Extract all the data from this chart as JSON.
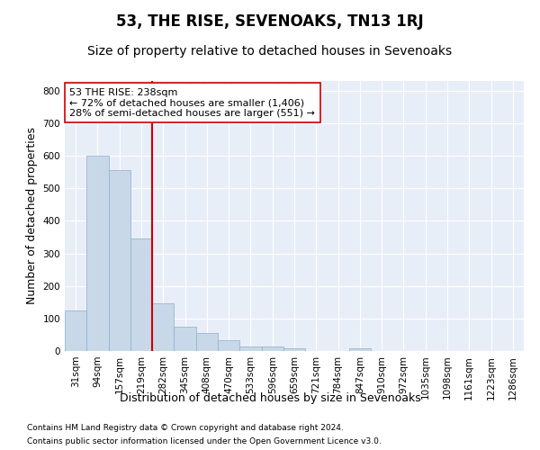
{
  "title": "53, THE RISE, SEVENOAKS, TN13 1RJ",
  "subtitle": "Size of property relative to detached houses in Sevenoaks",
  "xlabel": "Distribution of detached houses by size in Sevenoaks",
  "ylabel": "Number of detached properties",
  "footnote1": "Contains HM Land Registry data © Crown copyright and database right 2024.",
  "footnote2": "Contains public sector information licensed under the Open Government Licence v3.0.",
  "annotation_line1": "53 THE RISE: 238sqm",
  "annotation_line2": "← 72% of detached houses are smaller (1,406)",
  "annotation_line3": "28% of semi-detached houses are larger (551) →",
  "bar_color": "#c8d8e8",
  "bar_edge_color": "#8ab0cc",
  "red_line_color": "#cc0000",
  "background_color": "#e8eef8",
  "categories": [
    "31sqm",
    "94sqm",
    "157sqm",
    "219sqm",
    "282sqm",
    "345sqm",
    "408sqm",
    "470sqm",
    "533sqm",
    "596sqm",
    "659sqm",
    "721sqm",
    "784sqm",
    "847sqm",
    "910sqm",
    "972sqm",
    "1035sqm",
    "1098sqm",
    "1161sqm",
    "1223sqm",
    "1286sqm"
  ],
  "values": [
    125,
    600,
    555,
    347,
    148,
    75,
    55,
    34,
    15,
    13,
    7,
    0,
    0,
    8,
    0,
    0,
    0,
    0,
    0,
    0,
    0
  ],
  "red_line_index": 3.5,
  "ylim": [
    0,
    830
  ],
  "yticks": [
    0,
    100,
    200,
    300,
    400,
    500,
    600,
    700,
    800
  ],
  "title_fontsize": 12,
  "subtitle_fontsize": 10,
  "axis_label_fontsize": 9,
  "tick_fontsize": 7.5,
  "annotation_fontsize": 8,
  "footnote_fontsize": 6.5
}
